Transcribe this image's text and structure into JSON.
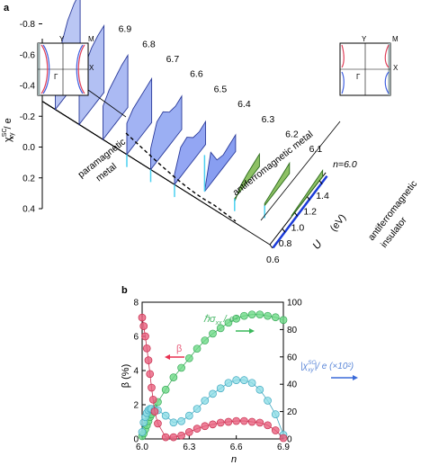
{
  "panel_a": {
    "label": "a",
    "y_axis_label": "χ",
    "y_axis_sup": "SC",
    "y_axis_sub": "xy",
    "y_axis_suffix": "/ e",
    "y_ticks": [
      "-0.8",
      "-0.6",
      "-0.4",
      "-0.2",
      "0.0",
      "0.2",
      "0.4"
    ],
    "u_ticks": [
      "0.6",
      "0.8",
      "1.0",
      "1.2",
      "1.4"
    ],
    "u_axis_label": "U",
    "u_axis_unit": "(eV)",
    "n_labels": [
      "n=6.0",
      "6.1",
      "6.2",
      "6.3",
      "6.4",
      "6.5",
      "6.6",
      "6.7",
      "6.8",
      "6.9"
    ],
    "phase_paramagnetic": "paramagnetic",
    "phase_metal": "metal",
    "phase_afm_metal": "antiferromagnetic metal",
    "phase_afm_insulator_1": "antiferromagnetic",
    "phase_afm_insulator_2": "insulator",
    "inset_left": {
      "top_label": "Y",
      "corner_label": "M",
      "center_label": "Γ"
    },
    "inset_right": {
      "top_label": "Y",
      "corner_label": "M",
      "side_label": "X",
      "center_label": "Γ"
    },
    "inset_left_side_label": "X"
  },
  "panel_b": {
    "label": "b",
    "left_axis_label": "β (%)",
    "right_ticks": [
      "0",
      "20",
      "40",
      "60",
      "80",
      "100"
    ],
    "x_axis_label": "n",
    "legend_beta": "β",
    "legend_sigma": "ℏσ",
    "legend_sigma_sub": "xx",
    "legend_sigma_suffix": "/ e²",
    "legend_chi": "|χ",
    "legend_chi_sup": "SC",
    "legend_chi_sub": "xy",
    "legend_chi_suffix": "|/ e (×10²)",
    "colors": {
      "beta": "#e8607e",
      "sigma": "#6ed987",
      "chi": "#8fdde6"
    }
  },
  "chart_data": [
    {
      "type": "area",
      "title": "",
      "xlabel": "U (eV)",
      "ylabel": "χSCxy / e",
      "ylim": [
        0.4,
        -0.8
      ],
      "series": [
        {
          "name": "6.0",
          "x": [
            0.95,
            1.05,
            1.15,
            1.25,
            1.35,
            1.45
          ],
          "values": [
            -0.01,
            -0.02,
            -0.03,
            -0.04,
            -0.05,
            -0.06
          ]
        },
        {
          "name": "6.1",
          "x": [
            0.9,
            1.0,
            1.1,
            1.2,
            1.3
          ],
          "values": [
            -0.02,
            -0.04,
            -0.06,
            -0.08,
            -0.1
          ]
        },
        {
          "name": "6.2",
          "x": [
            0.8,
            0.9,
            1.0,
            1.1,
            1.2
          ],
          "values": [
            0.03,
            -0.05,
            -0.08,
            -0.1,
            -0.12
          ]
        },
        {
          "name": "6.3",
          "x": [
            0.7,
            0.8,
            0.9,
            1.0,
            1.1,
            1.2
          ],
          "values": [
            0.0,
            -0.3,
            -0.15,
            -0.12,
            -0.14,
            -0.16
          ]
        },
        {
          "name": "6.4",
          "x": [
            0.6,
            0.7,
            0.8,
            0.9,
            1.0,
            1.1
          ],
          "values": [
            -0.1,
            -0.28,
            -0.3,
            -0.22,
            -0.2,
            -0.22
          ]
        },
        {
          "name": "6.5",
          "x": [
            0.6,
            0.7,
            0.8,
            0.9,
            1.0,
            1.1
          ],
          "values": [
            -0.2,
            -0.38,
            -0.4,
            -0.32,
            -0.3,
            -0.32
          ]
        },
        {
          "name": "6.6",
          "x": [
            0.6,
            0.7,
            0.8,
            0.9,
            1.0
          ],
          "values": [
            -0.3,
            -0.36,
            -0.38,
            -0.4,
            -0.42
          ]
        },
        {
          "name": "6.7",
          "x": [
            0.6,
            0.7,
            0.8,
            0.9,
            1.0
          ],
          "values": [
            -0.32,
            -0.4,
            -0.44,
            -0.48,
            -0.5
          ]
        },
        {
          "name": "6.8",
          "x": [
            0.6,
            0.7,
            0.8,
            0.9,
            1.0
          ],
          "values": [
            -0.38,
            -0.5,
            -0.58,
            -0.62,
            -0.64
          ]
        },
        {
          "name": "6.9",
          "x": [
            0.6,
            0.7,
            0.8,
            0.9,
            1.0
          ],
          "values": [
            -0.3,
            -0.55,
            -0.7,
            -0.78,
            -0.82
          ]
        }
      ]
    },
    {
      "type": "scatter",
      "title": "",
      "xlabel": "n",
      "ylabel": "β (%)",
      "y2label": "",
      "xlim": [
        6.0,
        6.9
      ],
      "ylim": [
        0,
        8
      ],
      "y2lim": [
        0,
        100
      ],
      "x_ticks": [
        "6.0",
        "6.3",
        "6.6",
        "6.9"
      ],
      "y_ticks": [
        "0",
        "2",
        "4",
        "6",
        "8"
      ],
      "series": [
        {
          "name": "β",
          "axis": "left",
          "x": [
            6.0,
            6.01,
            6.02,
            6.03,
            6.04,
            6.05,
            6.06,
            6.07,
            6.08,
            6.1,
            6.15,
            6.2,
            6.25,
            6.3,
            6.35,
            6.4,
            6.45,
            6.5,
            6.55,
            6.6,
            6.65,
            6.7,
            6.75,
            6.8,
            6.85,
            6.9
          ],
          "values": [
            7.1,
            6.6,
            6.0,
            5.3,
            4.6,
            3.8,
            3.0,
            2.3,
            1.6,
            0.9,
            0.1,
            0.1,
            0.2,
            0.4,
            0.6,
            0.75,
            0.85,
            0.95,
            1.0,
            1.05,
            1.05,
            1.0,
            0.95,
            0.8,
            0.5,
            0.05
          ]
        },
        {
          "name": "ℏσxx / e²",
          "axis": "right",
          "x": [
            6.0,
            6.01,
            6.02,
            6.03,
            6.04,
            6.05,
            6.06,
            6.08,
            6.1,
            6.15,
            6.2,
            6.25,
            6.3,
            6.35,
            6.4,
            6.45,
            6.5,
            6.55,
            6.6,
            6.65,
            6.7,
            6.75,
            6.8,
            6.85,
            6.9
          ],
          "values": [
            2,
            4,
            7,
            10,
            13,
            16,
            18,
            22,
            27,
            36,
            45,
            52,
            59,
            66,
            72,
            77,
            81,
            85,
            88,
            90,
            91,
            91,
            90,
            89,
            87
          ]
        },
        {
          "name": "|χSCxy|/ e (×10²)",
          "axis": "right",
          "x": [
            6.0,
            6.01,
            6.02,
            6.03,
            6.04,
            6.05,
            6.06,
            6.08,
            6.1,
            6.15,
            6.2,
            6.25,
            6.3,
            6.35,
            6.4,
            6.45,
            6.5,
            6.55,
            6.6,
            6.65,
            6.7,
            6.75,
            6.8,
            6.85,
            6.9
          ],
          "values": [
            5,
            12,
            16,
            19,
            21,
            22,
            22,
            21,
            21,
            17,
            12,
            13,
            17,
            22,
            28,
            33,
            37,
            41,
            43,
            43,
            41,
            36,
            28,
            18,
            3
          ]
        }
      ]
    }
  ]
}
